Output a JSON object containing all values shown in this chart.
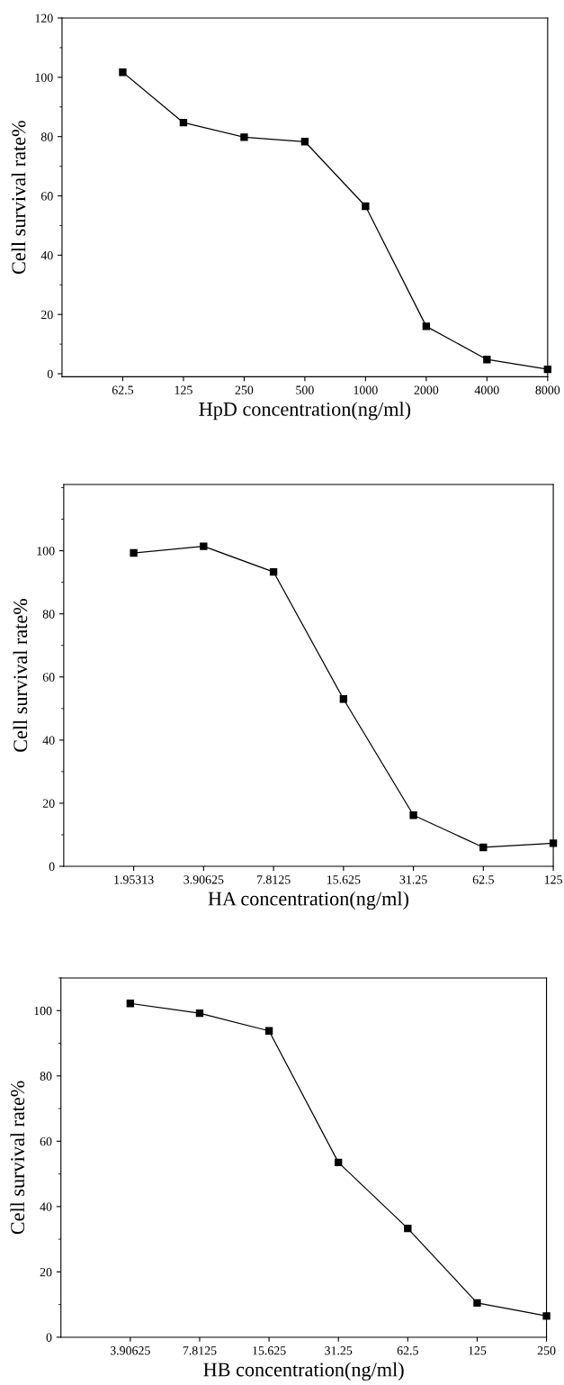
{
  "chart_data": [
    {
      "type": "line",
      "xlabel": "HpD concentration(ng/ml)",
      "ylabel": "Cell survival rate%",
      "categories": [
        "62.5",
        "125",
        "250",
        "500",
        "1000",
        "2000",
        "4000",
        "8000"
      ],
      "series": [
        {
          "color": "#000000",
          "values": [
            101.7,
            84.7,
            79.8,
            78.3,
            56.5,
            16,
            4.8,
            1.5
          ]
        }
      ],
      "ylim": [
        -1,
        120
      ],
      "yticks": [
        0,
        20,
        40,
        60,
        80,
        100,
        120
      ],
      "marker": "square",
      "line_style": "solid",
      "grid": false,
      "legend": false
    },
    {
      "type": "line",
      "xlabel": "HA concentration(ng/ml)",
      "ylabel": "Cell survival rate%",
      "categories": [
        "1.95313",
        "3.90625",
        "7.8125",
        "15.625",
        "31.25",
        "62.5",
        "125"
      ],
      "series": [
        {
          "color": "#000000",
          "values": [
            99.3,
            101.4,
            93.3,
            53,
            16.2,
            6,
            7.3
          ]
        }
      ],
      "ylim": [
        0,
        121
      ],
      "yticks": [
        0,
        20,
        40,
        60,
        80,
        100
      ],
      "marker": "square",
      "line_style": "solid",
      "grid": false,
      "legend": false
    },
    {
      "type": "line",
      "xlabel": "HB concentration(ng/ml)",
      "ylabel": "Cell survival rate%",
      "categories": [
        "3.90625",
        "7.8125",
        "15.625",
        "31.25",
        "62.5",
        "125",
        "250"
      ],
      "series": [
        {
          "color": "#000000",
          "values": [
            102.2,
            99.2,
            93.8,
            53.5,
            33.3,
            10.5,
            6.5
          ]
        }
      ],
      "ylim": [
        0,
        110
      ],
      "yticks": [
        0,
        20,
        40,
        60,
        80,
        100
      ],
      "marker": "square",
      "line_style": "solid",
      "grid": false,
      "legend": false
    }
  ]
}
